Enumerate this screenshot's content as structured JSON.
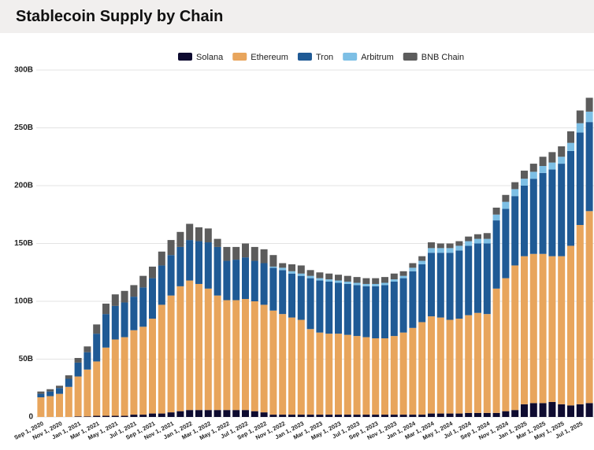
{
  "chart_data": {
    "type": "stacked_bar",
    "title": "Stablecoin Supply by Chain",
    "categories": [
      "Sep 1, 2020",
      null,
      "Nov 1, 2020",
      null,
      "Jan 1, 2021",
      null,
      "Mar 1, 2021",
      null,
      "May 1, 2021",
      null,
      "Jul 1, 2021",
      null,
      "Sep 1, 2021",
      null,
      "Nov 1, 2021",
      null,
      "Jan 1, 2022",
      null,
      "Mar 1, 2022",
      null,
      "May 1, 2022",
      null,
      "Jul 1, 2022",
      null,
      "Sep 1, 2022",
      null,
      "Nov 1, 2022",
      null,
      "Jan 1, 2023",
      null,
      "Mar 1, 2023",
      null,
      "May 1, 2023",
      null,
      "Jul 1, 2023",
      null,
      "Sep 1, 2023",
      null,
      "Nov 1, 2023",
      null,
      "Jan 1, 2024",
      null,
      "Mar 1, 2024",
      null,
      "May 1, 2024",
      null,
      "Jul 1, 2024",
      null,
      "Sep 1, 2024",
      null,
      "Nov 1, 2024",
      null,
      "Jan 1, 2025",
      null,
      "Mar 1, 2025",
      null,
      "May 1, 2025",
      null,
      "Jul 1, 2025",
      null
    ],
    "series": [
      {
        "name": "Solana",
        "color": "#0e0b30",
        "values": [
          0,
          0,
          0,
          0,
          0.5,
          0.5,
          1,
          1,
          1,
          1,
          2,
          2,
          3,
          3,
          4,
          5,
          6,
          6,
          6,
          6,
          6,
          6,
          6,
          5,
          4,
          2,
          2,
          2,
          2,
          2,
          2,
          2,
          2,
          2,
          2,
          2,
          2,
          2,
          2,
          2,
          2,
          2,
          3,
          3,
          3,
          3,
          3.5,
          3.5,
          3.5,
          3.5,
          5,
          6,
          11,
          12,
          12,
          13,
          11,
          10,
          11,
          12
        ]
      },
      {
        "name": "Ethereum",
        "color": "#e8a55c",
        "values": [
          17,
          18,
          20,
          26,
          34.5,
          40.5,
          47,
          59,
          66,
          68,
          73,
          76,
          82,
          94,
          101,
          108,
          112,
          109,
          105,
          99,
          95,
          95,
          96,
          95,
          93,
          90,
          87,
          84,
          82,
          74,
          71,
          70,
          70,
          69,
          68,
          67,
          66,
          66,
          68,
          71,
          75,
          80,
          84,
          83,
          81,
          82,
          84.5,
          86.5,
          85.5,
          107.5,
          115,
          125,
          128,
          129,
          129,
          126,
          128,
          138,
          155,
          166
        ]
      },
      {
        "name": "Tron",
        "color": "#1f5a95",
        "values": [
          3,
          4,
          5,
          7,
          12,
          15,
          24,
          29,
          29,
          30,
          29,
          34,
          35,
          34,
          35,
          34,
          35,
          37,
          40,
          42,
          34,
          35,
          36,
          35,
          36,
          37,
          38,
          38,
          38,
          44,
          45,
          45,
          44,
          44,
          44,
          44,
          45,
          46,
          47,
          47,
          49,
          50,
          55,
          56,
          58,
          59,
          60,
          60,
          61,
          59,
          60,
          60,
          61,
          65,
          70,
          75,
          80,
          82,
          80,
          77
        ]
      },
      {
        "name": "Arbitrum",
        "color": "#7dbfe5",
        "values": [
          0,
          0,
          0,
          0,
          0,
          0,
          0,
          0,
          0,
          0,
          0,
          0,
          0,
          0,
          0,
          0,
          0,
          0,
          0,
          0,
          0,
          0,
          0,
          0,
          0,
          1,
          2,
          2,
          2,
          2,
          2,
          2,
          2,
          2,
          2,
          2,
          2,
          2,
          2,
          2,
          3,
          3,
          4,
          4,
          4,
          4,
          4,
          4,
          4,
          5,
          6,
          6,
          6,
          6,
          6,
          6,
          6,
          7,
          8,
          9
        ]
      },
      {
        "name": "BNB Chain",
        "color": "#5c5c5c",
        "values": [
          2,
          2,
          2,
          3,
          4,
          5,
          8,
          9,
          10,
          10,
          10,
          10,
          10,
          12,
          13,
          13,
          14,
          12,
          12,
          7,
          12,
          11,
          12,
          12,
          12,
          10,
          4,
          6,
          7,
          5,
          5,
          5,
          5,
          5,
          5,
          5,
          5,
          5,
          5,
          4,
          4,
          4,
          5,
          4,
          4,
          4,
          4,
          4,
          5,
          6,
          6,
          6,
          7,
          7,
          8,
          9,
          9,
          10,
          11,
          12
        ]
      }
    ],
    "ylim": [
      0,
      300
    ],
    "yticks": [
      {
        "value": 0,
        "label": "0"
      },
      {
        "value": 50,
        "label": "50B"
      },
      {
        "value": 100,
        "label": "100B"
      },
      {
        "value": 150,
        "label": "150B"
      },
      {
        "value": 200,
        "label": "200B"
      },
      {
        "value": 250,
        "label": "250B"
      },
      {
        "value": 300,
        "label": "300B"
      }
    ],
    "grid": true,
    "legend": "top"
  }
}
